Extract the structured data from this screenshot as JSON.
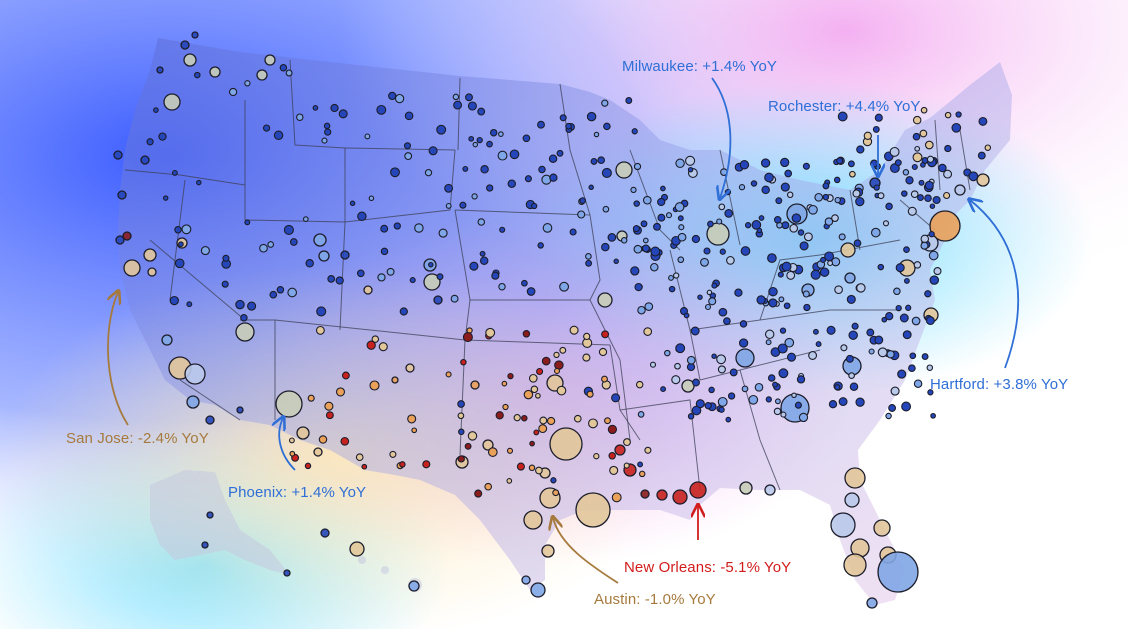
{
  "map": {
    "colors": {
      "positive": "#2f6fd6",
      "negative_strong": "#d21d1d",
      "negative_mild": "#b98a4a",
      "land": "#c9c9d6",
      "state_border": "#3c3f55"
    },
    "callouts": [
      {
        "id": "milwaukee",
        "text": "Milwaukee: +1.4% YoY",
        "color": "#2f6fd6"
      },
      {
        "id": "rochester",
        "text": "Rochester: +4.4% YoY",
        "color": "#2f6fd6"
      },
      {
        "id": "hartford",
        "text": "Hartford: +3.8% YoY",
        "color": "#2f6fd6"
      },
      {
        "id": "san_jose",
        "text": "San Jose: -2.4% YoY",
        "color": "#a67a3d"
      },
      {
        "id": "phoenix",
        "text": "Phoenix: +1.4% YoY",
        "color": "#2f6fd6"
      },
      {
        "id": "new_orleans",
        "text": "New Orleans: -5.1% YoY",
        "color": "#d21d1d"
      },
      {
        "id": "austin",
        "text": "Austin: -1.0% YoY",
        "color": "#a67a3d"
      }
    ]
  }
}
